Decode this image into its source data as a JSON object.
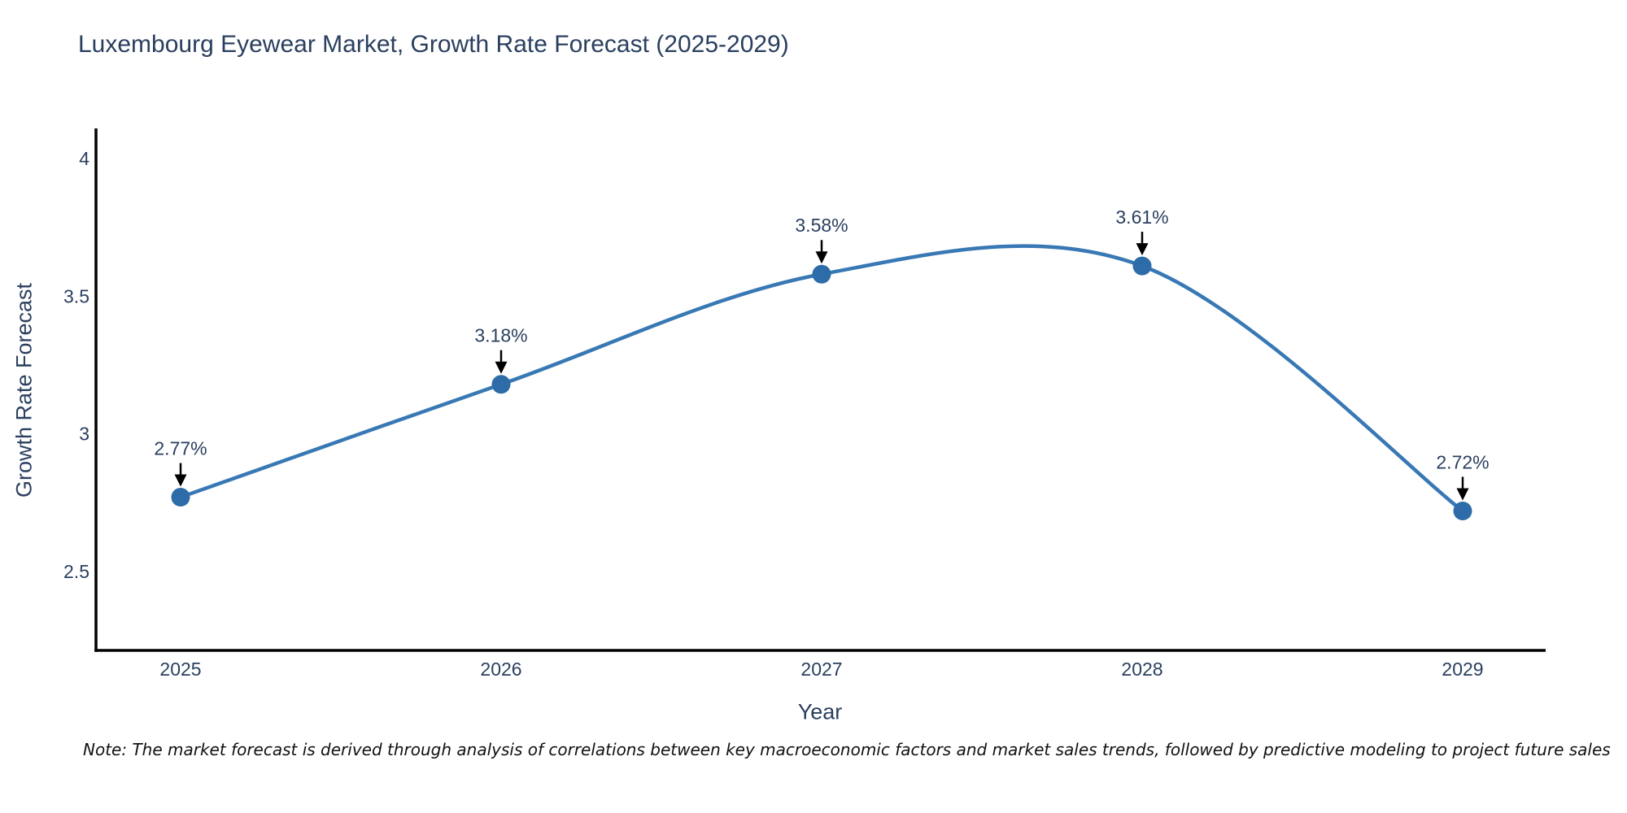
{
  "page": {
    "note": "Note: The market forecast is derived through analysis of correlations between key macroeconomic factors and market sales trends, followed by predictive modeling to project future sales"
  },
  "chart_data": {
    "type": "line",
    "title": "Luxembourg Eyewear Market, Growth Rate Forecast (2025-2029)",
    "xlabel": "Year",
    "ylabel": "Growth Rate Forecast",
    "x": [
      2025,
      2026,
      2027,
      2028,
      2029
    ],
    "values": [
      2.77,
      3.18,
      3.58,
      3.61,
      2.72
    ],
    "point_labels": [
      "2.77%",
      "3.18%",
      "3.58%",
      "3.61%",
      "2.72%"
    ],
    "xticks": [
      "2025",
      "2026",
      "2027",
      "2028",
      "2029"
    ],
    "yticks": [
      2.5,
      3,
      3.5,
      4
    ],
    "ylim": [
      2.21,
      4.1
    ],
    "xlim": [
      2024.74,
      2029.26
    ],
    "line_shape": "spline",
    "grid": false,
    "legend_position": "none",
    "colors": {
      "line": "#3878b4",
      "marker": "#2d6ca8",
      "axis": "#000000",
      "text": "#2a3f5f",
      "arrow": "#000000",
      "background": "#ffffff"
    }
  }
}
